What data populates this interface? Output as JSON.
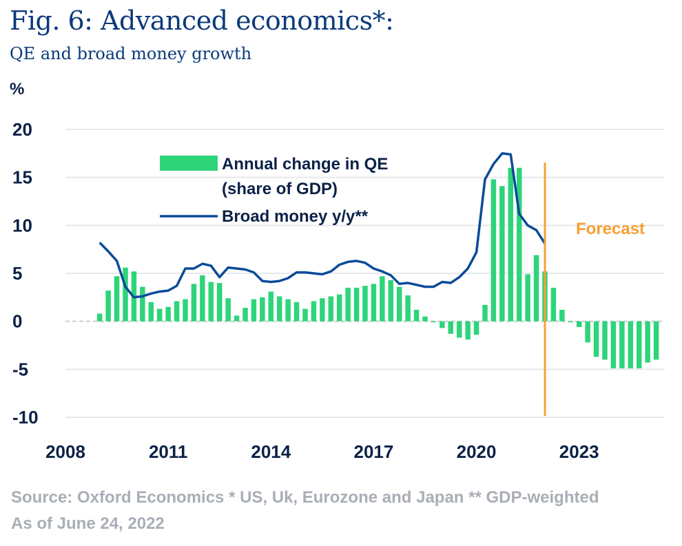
{
  "header": {
    "title": "Fig. 6: Advanced economics*:",
    "subtitle": "QE and broad money growth",
    "unit": "%"
  },
  "footer": {
    "source": "Source: Oxford Economics * US, Uk, Eurozone and Japan  ** GDP-weighted",
    "date": "As of June 24, 2022"
  },
  "colors": {
    "bar": "#2ed47a",
    "line": "#0b4a9a",
    "forecast": "#f7a033",
    "grid": "#e6e8ec",
    "zero_line": "#c8ccd2"
  },
  "chart_data": {
    "type": "bar+line",
    "title": "Fig. 6: Advanced economics*:",
    "subtitle": "QE and broad money growth",
    "ylabel": "%",
    "ylim": [
      -10,
      20
    ],
    "yticks": [
      "20",
      "15",
      "10",
      "5",
      "0",
      "-5",
      "-10"
    ],
    "ytick_values": [
      20,
      15,
      10,
      5,
      0,
      -5,
      -10
    ],
    "xlim": [
      2008,
      2025.5
    ],
    "xticks": [
      "2008",
      "2011",
      "2014",
      "2017",
      "2020",
      "2023"
    ],
    "xtick_values": [
      2008,
      2011,
      2014,
      2017,
      2020,
      2023
    ],
    "grid": true,
    "legend": {
      "position": "top-center",
      "bar_label_line1": "Annual change in QE",
      "bar_label_line2": "(share of GDP)",
      "line_label": "Broad money y/y**"
    },
    "forecast": {
      "x": 2022.0,
      "label": "Forecast"
    },
    "bar_series": {
      "name": "Annual change in QE (share of GDP)",
      "x": [
        2009.0,
        2009.25,
        2009.5,
        2009.75,
        2010.0,
        2010.25,
        2010.5,
        2010.75,
        2011.0,
        2011.25,
        2011.5,
        2011.75,
        2012.0,
        2012.25,
        2012.5,
        2012.75,
        2013.0,
        2013.25,
        2013.5,
        2013.75,
        2014.0,
        2014.25,
        2014.5,
        2014.75,
        2015.0,
        2015.25,
        2015.5,
        2015.75,
        2016.0,
        2016.25,
        2016.5,
        2016.75,
        2017.0,
        2017.25,
        2017.5,
        2017.75,
        2018.0,
        2018.25,
        2018.5,
        2018.75,
        2019.0,
        2019.25,
        2019.5,
        2019.75,
        2020.0,
        2020.25,
        2020.5,
        2020.75,
        2021.0,
        2021.25,
        2021.5,
        2021.75,
        2022.0,
        2022.25,
        2022.5,
        2022.75,
        2023.0,
        2023.25,
        2023.5,
        2023.75,
        2024.0,
        2024.25,
        2024.5,
        2024.75,
        2025.0,
        2025.25
      ],
      "values": [
        0.8,
        3.2,
        4.7,
        5.6,
        5.2,
        3.6,
        2.0,
        1.3,
        1.5,
        2.1,
        2.3,
        3.9,
        4.8,
        4.1,
        4.0,
        2.4,
        0.6,
        1.4,
        2.3,
        2.5,
        3.1,
        2.6,
        2.3,
        2.0,
        1.3,
        2.1,
        2.4,
        2.6,
        2.8,
        3.5,
        3.5,
        3.7,
        3.9,
        4.7,
        4.3,
        3.6,
        2.7,
        1.2,
        0.5,
        -0.1,
        -0.7,
        -1.3,
        -1.7,
        -1.9,
        -1.4,
        1.7,
        14.8,
        14.1,
        16.0,
        16.0,
        4.9,
        6.9,
        5.2,
        3.5,
        1.2,
        -0.1,
        -0.6,
        -2.2,
        -3.7,
        -4.0,
        -4.9,
        -4.9,
        -4.9,
        -4.9,
        -4.3,
        -4.0
      ]
    },
    "line_series": {
      "name": "Broad money y/y**",
      "x": [
        2009.0,
        2009.25,
        2009.5,
        2009.75,
        2010.0,
        2010.25,
        2010.5,
        2010.75,
        2011.0,
        2011.25,
        2011.5,
        2011.75,
        2012.0,
        2012.25,
        2012.5,
        2012.75,
        2013.0,
        2013.25,
        2013.5,
        2013.75,
        2014.0,
        2014.25,
        2014.5,
        2014.75,
        2015.0,
        2015.25,
        2015.5,
        2015.75,
        2016.0,
        2016.25,
        2016.5,
        2016.75,
        2017.0,
        2017.25,
        2017.5,
        2017.75,
        2018.0,
        2018.25,
        2018.5,
        2018.75,
        2019.0,
        2019.25,
        2019.5,
        2019.75,
        2020.0,
        2020.25,
        2020.5,
        2020.75,
        2021.0,
        2021.25,
        2021.5,
        2021.75,
        2022.0
      ],
      "values": [
        8.2,
        7.3,
        6.3,
        3.6,
        2.5,
        2.6,
        2.9,
        3.1,
        3.2,
        3.7,
        5.5,
        5.5,
        6.0,
        5.8,
        4.6,
        5.6,
        5.5,
        5.4,
        5.1,
        4.2,
        4.1,
        4.2,
        4.5,
        5.1,
        5.1,
        5.0,
        4.9,
        5.2,
        5.9,
        6.2,
        6.3,
        6.1,
        5.5,
        5.2,
        4.8,
        3.9,
        4.0,
        3.8,
        3.6,
        3.6,
        4.1,
        4.0,
        4.6,
        5.5,
        7.2,
        14.8,
        16.4,
        17.5,
        17.4,
        11.2,
        10.0,
        9.5,
        8.1
      ]
    }
  }
}
